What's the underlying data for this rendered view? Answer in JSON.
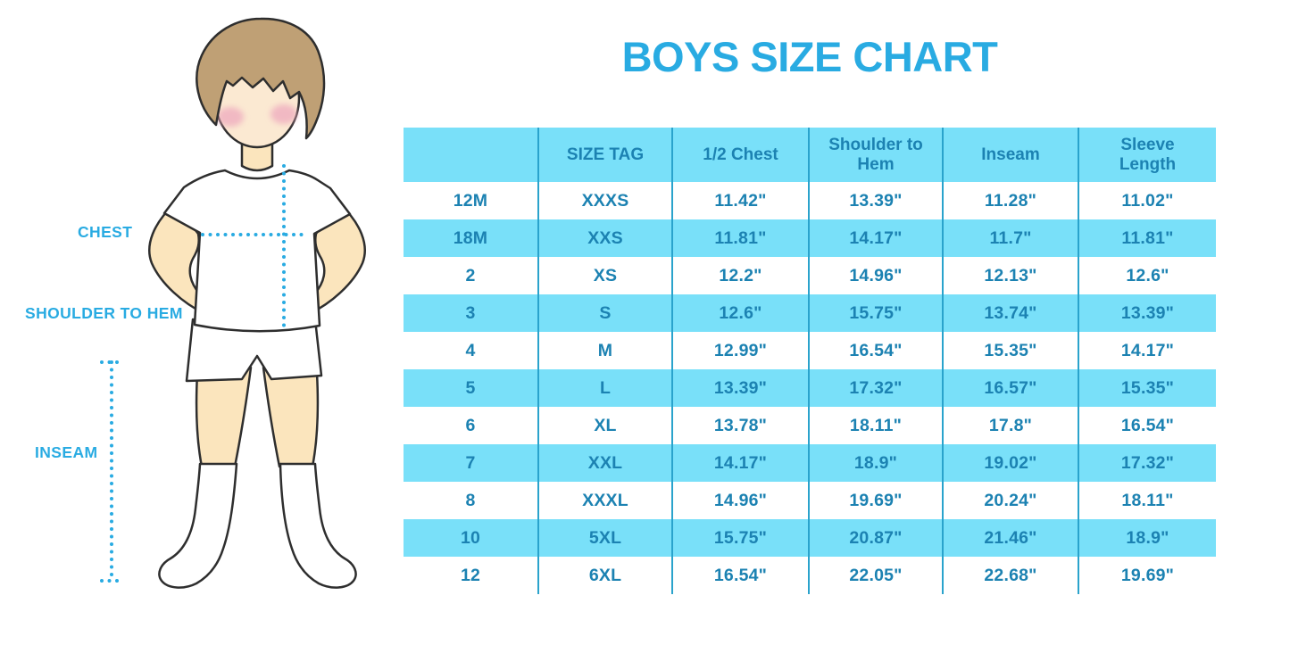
{
  "title": "BOYS SIZE CHART",
  "figure": {
    "description": "boy-in-white-tshirt-shorts-and-socks-with-measurement-guides",
    "labels": {
      "chest": "CHEST",
      "shoulder_to_hem": "SHOULDER TO HEM",
      "inseam": "INSEAM"
    }
  },
  "colors": {
    "accent_blue": "#29abe2",
    "table_text_blue": "#1c82b2",
    "row_band_cyan": "#79e0f9",
    "column_divider": "#2aa3cc",
    "outline_dark": "#2e2e2e",
    "skin": "#fbe5bd",
    "face_skin": "#fbe9d2",
    "hair_brown": "#bfa075",
    "cheek_pink": "#eea9bd",
    "background": "#ffffff"
  },
  "chart_data": {
    "type": "table",
    "title": "BOYS SIZE CHART",
    "columns": [
      "",
      "SIZE TAG",
      "1/2 Chest",
      "Shoulder to Hem",
      "Inseam",
      "Sleeve Length"
    ],
    "rows": [
      [
        "12M",
        "XXXS",
        "11.42\"",
        "13.39\"",
        "11.28\"",
        "11.02\""
      ],
      [
        "18M",
        "XXS",
        "11.81\"",
        "14.17\"",
        "11.7\"",
        "11.81\""
      ],
      [
        "2",
        "XS",
        "12.2\"",
        "14.96\"",
        "12.13\"",
        "12.6\""
      ],
      [
        "3",
        "S",
        "12.6\"",
        "15.75\"",
        "13.74\"",
        "13.39\""
      ],
      [
        "4",
        "M",
        "12.99\"",
        "16.54\"",
        "15.35\"",
        "14.17\""
      ],
      [
        "5",
        "L",
        "13.39\"",
        "17.32\"",
        "16.57\"",
        "15.35\""
      ],
      [
        "6",
        "XL",
        "13.78\"",
        "18.11\"",
        "17.8\"",
        "16.54\""
      ],
      [
        "7",
        "XXL",
        "14.17\"",
        "18.9\"",
        "19.02\"",
        "17.32\""
      ],
      [
        "8",
        "XXXL",
        "14.96\"",
        "19.69\"",
        "20.24\"",
        "18.11\""
      ],
      [
        "10",
        "5XL",
        "15.75\"",
        "20.87\"",
        "21.46\"",
        "18.9\""
      ],
      [
        "12",
        "6XL",
        "16.54\"",
        "22.05\"",
        "22.68\"",
        "19.69\""
      ]
    ]
  }
}
